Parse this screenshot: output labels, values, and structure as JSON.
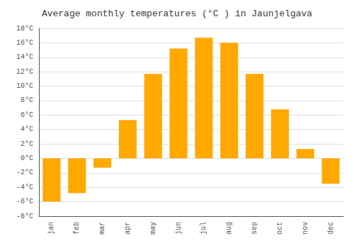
{
  "chart_data": {
    "type": "bar",
    "title": "Average monthly temperatures (°C ) in Jaunjelgava",
    "categories": [
      "jan",
      "feb",
      "mar",
      "apr",
      "may",
      "jun",
      "jul",
      "aug",
      "sep",
      "oct",
      "nov",
      "dec"
    ],
    "values": [
      -6.0,
      -4.8,
      -1.3,
      5.3,
      11.7,
      15.2,
      16.7,
      16.0,
      11.7,
      6.8,
      1.3,
      -3.5
    ],
    "color": "#FFA800",
    "ylim": [
      -8,
      18
    ],
    "yticks": [
      {
        "value": -8,
        "label": "-8°C"
      },
      {
        "value": -6,
        "label": "-6°C"
      },
      {
        "value": -4,
        "label": "-4°C"
      },
      {
        "value": -2,
        "label": "-2°C"
      },
      {
        "value": 0,
        "label": "0°C"
      },
      {
        "value": 2,
        "label": "2°C"
      },
      {
        "value": 4,
        "label": "4°C"
      },
      {
        "value": 6,
        "label": "6°C"
      },
      {
        "value": 8,
        "label": "8°C"
      },
      {
        "value": 10,
        "label": "10°C"
      },
      {
        "value": 12,
        "label": "12°C"
      },
      {
        "value": 14,
        "label": "14°C"
      },
      {
        "value": 16,
        "label": "16°C"
      },
      {
        "value": 18,
        "label": "18°C"
      }
    ],
    "grid": true
  }
}
